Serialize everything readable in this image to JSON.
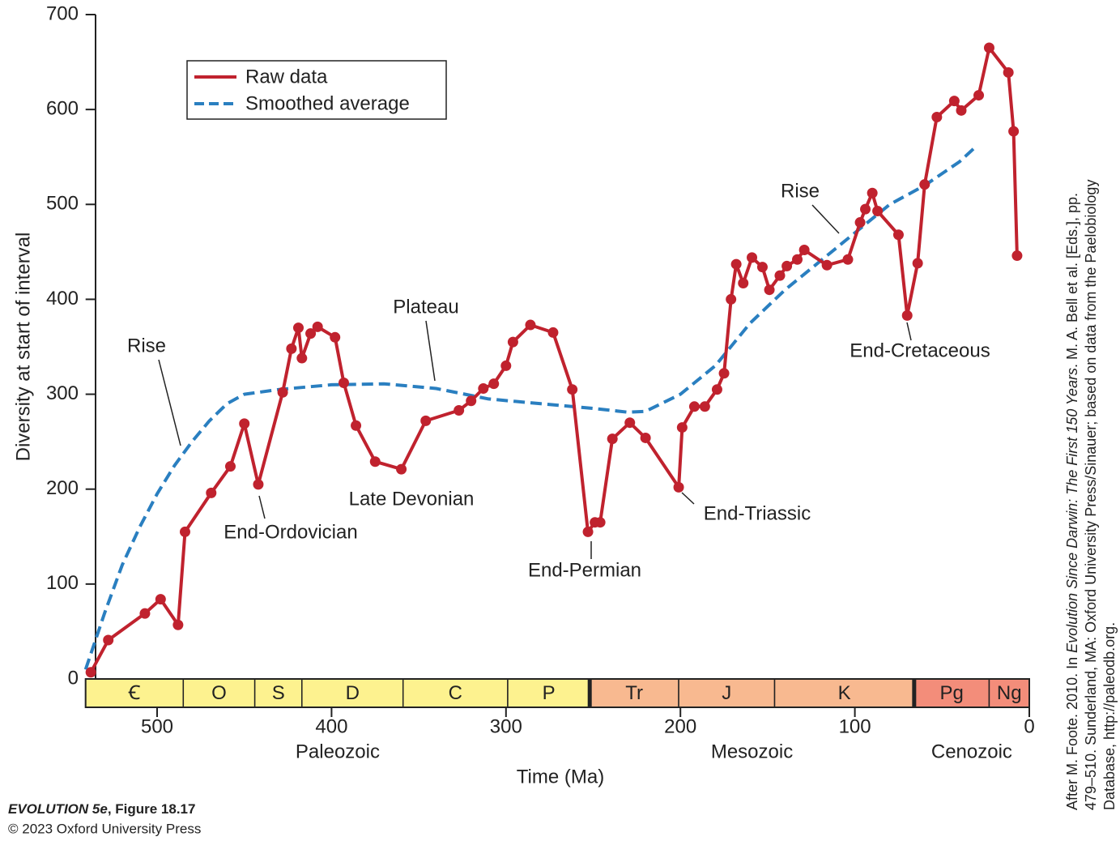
{
  "chart_data": {
    "type": "line",
    "xlabel": "Time (Ma)",
    "ylabel": "Diversity at start of interval",
    "xlim": [
      541,
      0
    ],
    "ylim": [
      0,
      700
    ],
    "xticks": [
      500,
      400,
      300,
      200,
      100,
      0
    ],
    "yticks": [
      0,
      100,
      200,
      300,
      400,
      500,
      600,
      700
    ],
    "series": [
      {
        "name": "Raw data",
        "color": "#c0222e",
        "style": "solid",
        "markers": true,
        "x": [
          538,
          528,
          507,
          498,
          488,
          484,
          469,
          458,
          450,
          442,
          428,
          423,
          419,
          417,
          412,
          408,
          398,
          393,
          386,
          375,
          360,
          346,
          327,
          320,
          313,
          307,
          300,
          296,
          286,
          273,
          262,
          253,
          249,
          246,
          239,
          229,
          220,
          201,
          199,
          192,
          186,
          179,
          175,
          171,
          168,
          164,
          159,
          153,
          149,
          143,
          139,
          133,
          129,
          116,
          104,
          97,
          94,
          90,
          87,
          75,
          70,
          64,
          60,
          53,
          43,
          39,
          29,
          23,
          12,
          9,
          7
        ],
        "values": [
          7,
          41,
          69,
          84,
          57,
          155,
          196,
          224,
          269,
          205,
          302,
          348,
          370,
          338,
          364,
          371,
          360,
          312,
          267,
          229,
          221,
          272,
          283,
          293,
          306,
          311,
          330,
          355,
          373,
          365,
          305,
          155,
          165,
          165,
          253,
          270,
          254,
          202,
          265,
          287,
          287,
          305,
          322,
          400,
          437,
          417,
          444,
          434,
          410,
          425,
          435,
          442,
          452,
          436,
          442,
          481,
          495,
          512,
          493,
          468,
          383,
          438,
          521,
          592,
          609,
          599,
          615,
          665,
          639,
          577,
          446
        ]
      },
      {
        "name": "Smoothed average",
        "color": "#2a7fc0",
        "style": "dashed",
        "markers": false,
        "x": [
          541,
          530,
          520,
          510,
          500,
          490,
          480,
          470,
          460,
          450,
          430,
          400,
          370,
          340,
          310,
          280,
          250,
          230,
          220,
          200,
          180,
          160,
          140,
          120,
          100,
          80,
          60,
          40,
          30
        ],
        "values": [
          10,
          70,
          120,
          160,
          195,
          225,
          250,
          272,
          290,
          300,
          305,
          310,
          311,
          306,
          295,
          290,
          285,
          281,
          282,
          300,
          330,
          375,
          410,
          440,
          470,
          500,
          520,
          545,
          562
        ]
      }
    ],
    "eras": [
      {
        "name": "Paleozoic",
        "start": 541,
        "end": 252,
        "color": "#fdf28f"
      },
      {
        "name": "Mesozoic",
        "start": 252,
        "end": 66,
        "color": "#f8b990"
      },
      {
        "name": "Cenozoic",
        "start": 66,
        "end": 0,
        "color": "#f38d7a"
      }
    ],
    "periods": [
      {
        "name": "Ꞓ",
        "start": 541,
        "end": 485,
        "era": 0
      },
      {
        "name": "O",
        "start": 485,
        "end": 444,
        "era": 0
      },
      {
        "name": "S",
        "start": 444,
        "end": 417,
        "era": 0
      },
      {
        "name": "D",
        "start": 417,
        "end": 359,
        "era": 0
      },
      {
        "name": "C",
        "start": 359,
        "end": 299,
        "era": 0
      },
      {
        "name": "P",
        "start": 299,
        "end": 252,
        "era": 0
      },
      {
        "name": "Tr",
        "start": 252,
        "end": 201,
        "era": 1
      },
      {
        "name": "J",
        "start": 201,
        "end": 146,
        "era": 1
      },
      {
        "name": "K",
        "start": 146,
        "end": 66,
        "era": 1
      },
      {
        "name": "Pg",
        "start": 66,
        "end": 23,
        "era": 2
      },
      {
        "name": "Ng",
        "start": 23,
        "end": 0,
        "era": 2
      }
    ],
    "annotations": [
      "Rise",
      "Plateau",
      "Late Devonian",
      "End-Ordovician",
      "End-Permian",
      "End-Triassic",
      "Rise",
      "End-Cretaceous"
    ],
    "credit": {
      "line1_a": "After M. Foote. 2010. In ",
      "line1_b": "Evolution Since Darwin: The First 150 Years",
      "line1_c": ". M. A. Bell et al. [Eds.], pp.",
      "line2": "479–510. Sunderland, MA: Oxford University Press/Sinauer; based on data from the Paelobiology",
      "line3": "Database, http://paleodb.org."
    },
    "source": {
      "book": "EVOLUTION 5e",
      "figure": ", Figure 18.17",
      "copyright": "© 2023 Oxford University Press"
    }
  }
}
